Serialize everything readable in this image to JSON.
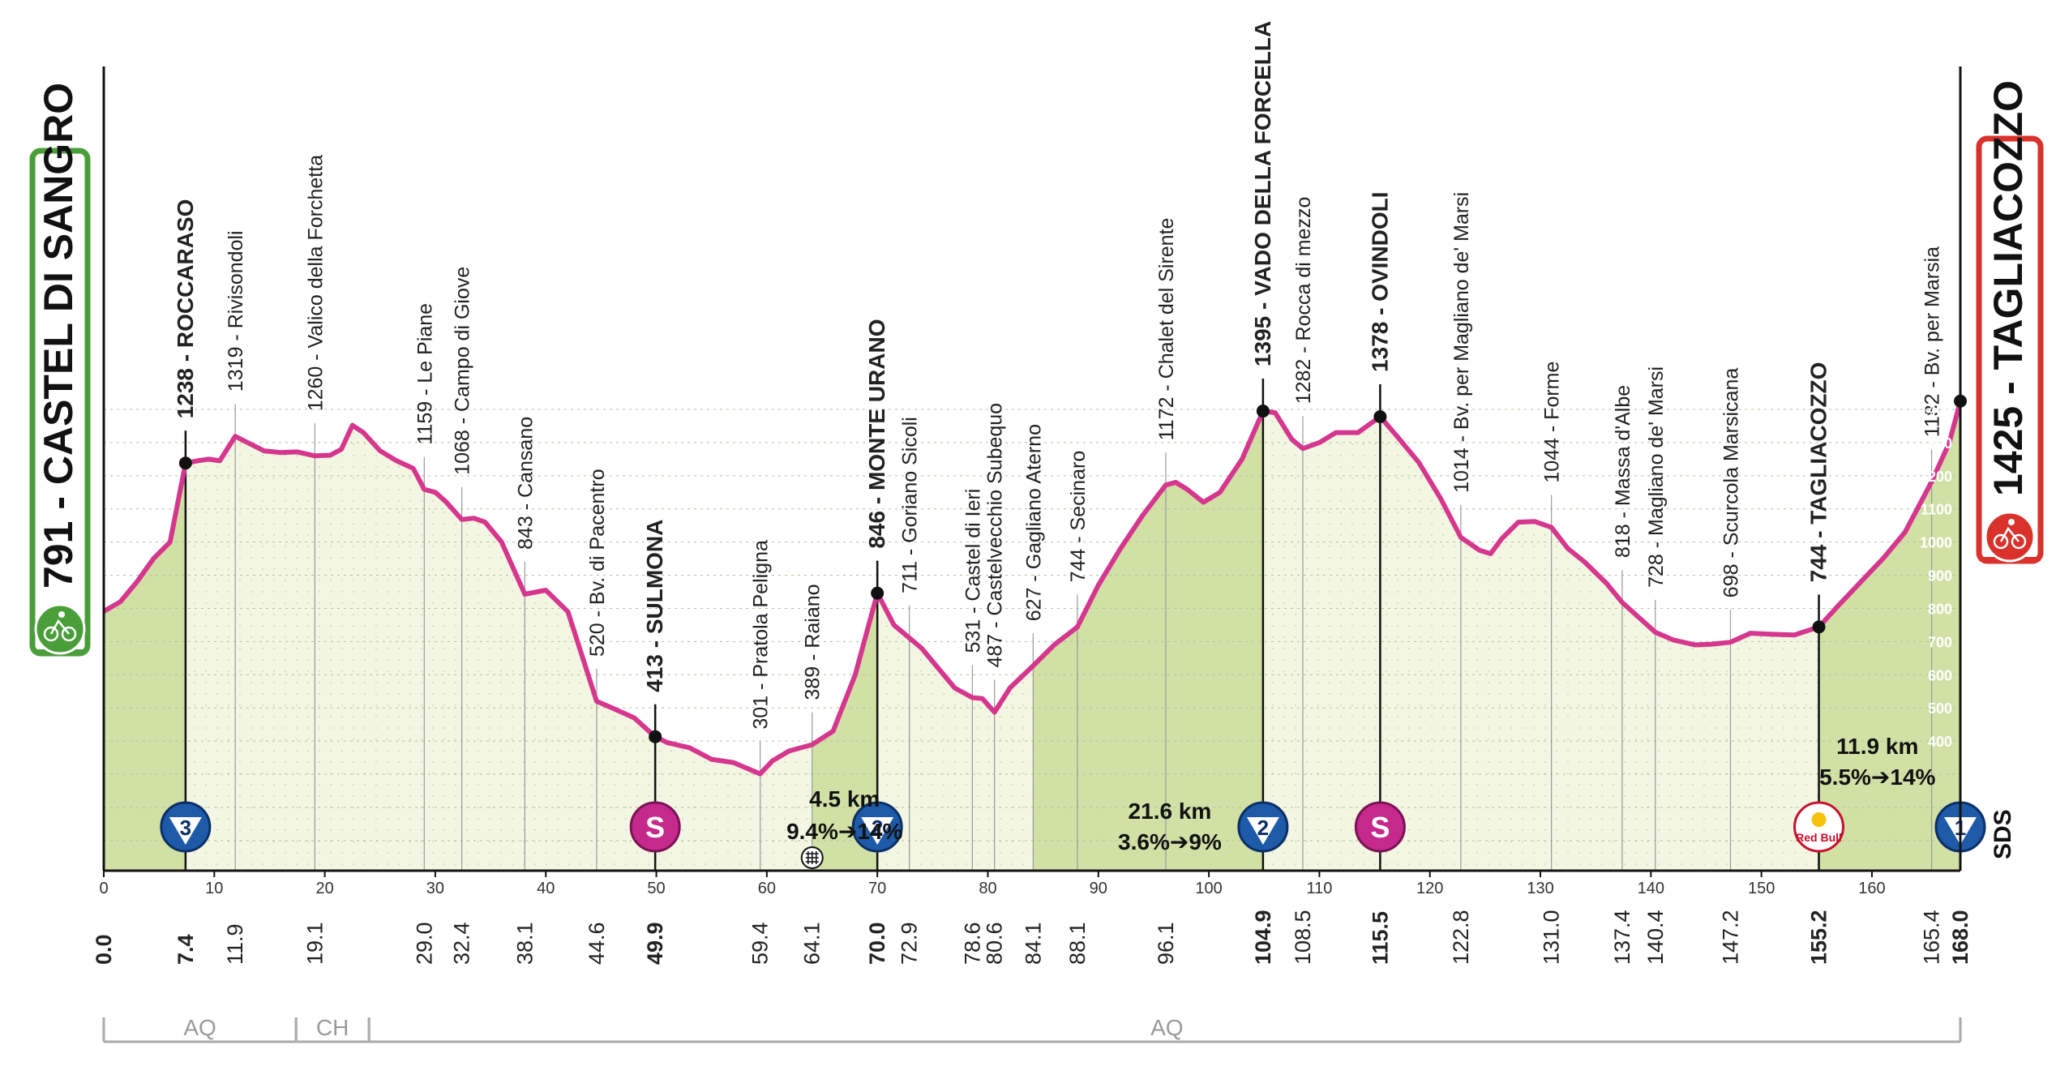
{
  "chart_data": {
    "type": "area",
    "title": "",
    "xlabel": "",
    "ylabel": "",
    "xlim": [
      0,
      168
    ],
    "ylim": [
      0,
      1500
    ],
    "profile": [
      [
        0,
        791
      ],
      [
        1.5,
        820
      ],
      [
        3,
        880
      ],
      [
        4.5,
        950
      ],
      [
        6,
        1000
      ],
      [
        7.4,
        1238
      ],
      [
        8.5,
        1245
      ],
      [
        9.5,
        1250
      ],
      [
        10.5,
        1245
      ],
      [
        11.9,
        1319
      ],
      [
        13,
        1300
      ],
      [
        14.5,
        1275
      ],
      [
        16,
        1270
      ],
      [
        17.5,
        1272
      ],
      [
        19.1,
        1260
      ],
      [
        20.5,
        1262
      ],
      [
        21.5,
        1280
      ],
      [
        22.5,
        1352
      ],
      [
        23.5,
        1330
      ],
      [
        25,
        1275
      ],
      [
        26.5,
        1245
      ],
      [
        28,
        1222
      ],
      [
        29,
        1159
      ],
      [
        30,
        1150
      ],
      [
        31,
        1120
      ],
      [
        32.4,
        1068
      ],
      [
        33.5,
        1072
      ],
      [
        34.5,
        1060
      ],
      [
        36,
        1000
      ],
      [
        38.1,
        843
      ],
      [
        40,
        855
      ],
      [
        42,
        790
      ],
      [
        44.6,
        520
      ],
      [
        46,
        500
      ],
      [
        48,
        470
      ],
      [
        49.9,
        413
      ],
      [
        51,
        395
      ],
      [
        53,
        380
      ],
      [
        55,
        345
      ],
      [
        57,
        335
      ],
      [
        59.4,
        301
      ],
      [
        60.5,
        340
      ],
      [
        62,
        370
      ],
      [
        64.1,
        389
      ],
      [
        66,
        430
      ],
      [
        68,
        600
      ],
      [
        70,
        846
      ],
      [
        71.5,
        750
      ],
      [
        72.9,
        711
      ],
      [
        74,
        680
      ],
      [
        75.5,
        620
      ],
      [
        77,
        560
      ],
      [
        78.6,
        531
      ],
      [
        79.5,
        528
      ],
      [
        80.6,
        487
      ],
      [
        82,
        560
      ],
      [
        84.1,
        627
      ],
      [
        86,
        690
      ],
      [
        88.1,
        744
      ],
      [
        90,
        870
      ],
      [
        92,
        980
      ],
      [
        94,
        1080
      ],
      [
        96.1,
        1172
      ],
      [
        97,
        1180
      ],
      [
        98,
        1160
      ],
      [
        99.5,
        1120
      ],
      [
        101,
        1150
      ],
      [
        103,
        1250
      ],
      [
        104.9,
        1395
      ],
      [
        106,
        1390
      ],
      [
        107.5,
        1310
      ],
      [
        108.5,
        1282
      ],
      [
        110,
        1300
      ],
      [
        111.5,
        1330
      ],
      [
        113.5,
        1330
      ],
      [
        115.5,
        1378
      ],
      [
        117,
        1320
      ],
      [
        119,
        1240
      ],
      [
        121,
        1130
      ],
      [
        122.8,
        1014
      ],
      [
        124.5,
        975
      ],
      [
        125.5,
        965
      ],
      [
        126.5,
        1010
      ],
      [
        128,
        1060
      ],
      [
        129.5,
        1062
      ],
      [
        131,
        1044
      ],
      [
        132.5,
        980
      ],
      [
        134,
        940
      ],
      [
        136,
        875
      ],
      [
        137.4,
        818
      ],
      [
        139,
        770
      ],
      [
        140.4,
        728
      ],
      [
        142,
        705
      ],
      [
        144,
        690
      ],
      [
        145.5,
        692
      ],
      [
        147.2,
        698
      ],
      [
        149,
        725
      ],
      [
        151,
        722
      ],
      [
        153,
        720
      ],
      [
        155.2,
        744
      ],
      [
        157,
        810
      ],
      [
        159,
        880
      ],
      [
        161,
        950
      ],
      [
        163,
        1030
      ],
      [
        165.4,
        1182
      ],
      [
        167,
        1300
      ],
      [
        168,
        1425
      ]
    ],
    "x_ticks": [
      0,
      10,
      20,
      30,
      40,
      50,
      60,
      70,
      80,
      90,
      100,
      110,
      120,
      130,
      140,
      150,
      160
    ],
    "y_ticks": [
      "400",
      "500",
      "600",
      "700",
      "800",
      "900",
      "1000",
      "1100",
      "1200",
      "1300",
      "1400"
    ],
    "start": {
      "label": "791 - CASTEL DI SANGRO",
      "km": 0,
      "alt": 791,
      "km_label": "0.0"
    },
    "finish": {
      "label": "1425 - TAGLIACOZZO",
      "km": 168,
      "alt": 1425,
      "km_label": "168.0"
    },
    "waypoints": [
      {
        "km": 7.4,
        "alt": 1238,
        "km_label": "7.4",
        "label": "1238 - ROCCARASO",
        "bold": true,
        "kind": "kom",
        "badge": "3"
      },
      {
        "km": 11.9,
        "alt": 1319,
        "km_label": "11.9",
        "label": "1319 - Rivisondoli",
        "bold": false
      },
      {
        "km": 19.1,
        "alt": 1260,
        "km_label": "19.1",
        "label": "1260 - Valico della Forchetta",
        "bold": false
      },
      {
        "km": 29.0,
        "alt": 1159,
        "km_label": "29.0",
        "label": "1159 - Le Piane",
        "bold": false
      },
      {
        "km": 32.4,
        "alt": 1068,
        "km_label": "32.4",
        "label": "1068 - Campo di Giove",
        "bold": false
      },
      {
        "km": 38.1,
        "alt": 843,
        "km_label": "38.1",
        "label": "843 - Cansano",
        "bold": false
      },
      {
        "km": 44.6,
        "alt": 520,
        "km_label": "44.6",
        "label": "520 - Bv. di Pacentro",
        "bold": false
      },
      {
        "km": 49.9,
        "alt": 413,
        "km_label": "49.9",
        "label": "413 - SULMONA",
        "bold": true,
        "kind": "sprint",
        "badge": "S"
      },
      {
        "km": 59.4,
        "alt": 301,
        "km_label": "59.4",
        "label": "301 - Pratola Peligna",
        "bold": false
      },
      {
        "km": 64.1,
        "alt": 389,
        "km_label": "64.1",
        "label": "389 - Raiano",
        "bold": false,
        "kind": "feed"
      },
      {
        "km": 70.0,
        "alt": 846,
        "km_label": "70.0",
        "label": "846 - MONTE URANO",
        "bold": true,
        "kind": "kom",
        "badge": "2"
      },
      {
        "km": 72.9,
        "alt": 711,
        "km_label": "72.9",
        "label": "711 - Goriano Sicoli",
        "bold": false
      },
      {
        "km": 78.6,
        "alt": 531,
        "km_label": "78.6",
        "label": "531 - Castel di Ieri",
        "bold": false
      },
      {
        "km": 80.6,
        "alt": 487,
        "km_label": "80.6",
        "label": "487 - Castelvecchio Subequo",
        "bold": false
      },
      {
        "km": 84.1,
        "alt": 627,
        "km_label": "84.1",
        "label": "627 - Gagliano Aterno",
        "bold": false
      },
      {
        "km": 88.1,
        "alt": 744,
        "km_label": "88.1",
        "label": "744 - Secinaro",
        "bold": false
      },
      {
        "km": 96.1,
        "alt": 1172,
        "km_label": "96.1",
        "label": "1172 - Chalet del Sirente",
        "bold": false
      },
      {
        "km": 104.9,
        "alt": 1395,
        "km_label": "104.9",
        "label": "1395 - VADO DELLA FORCELLA",
        "bold": true,
        "kind": "kom",
        "badge": "2"
      },
      {
        "km": 108.5,
        "alt": 1282,
        "km_label": "108.5",
        "label": "1282 - Rocca di mezzo",
        "bold": false
      },
      {
        "km": 115.5,
        "alt": 1378,
        "km_label": "115.5",
        "label": "1378 - OVINDOLI",
        "bold": true,
        "kind": "sprint",
        "badge": "S"
      },
      {
        "km": 122.8,
        "alt": 1014,
        "km_label": "122.8",
        "label": "1014 - Bv. per Magliano de' Marsi",
        "bold": false
      },
      {
        "km": 131.0,
        "alt": 1044,
        "km_label": "131.0",
        "label": "1044 - Forme",
        "bold": false
      },
      {
        "km": 137.4,
        "alt": 818,
        "km_label": "137.4",
        "label": "818 - Massa d'Albe",
        "bold": false
      },
      {
        "km": 140.4,
        "alt": 728,
        "km_label": "140.4",
        "label": "728 - Magliano de' Marsi",
        "bold": false
      },
      {
        "km": 147.2,
        "alt": 698,
        "km_label": "147.2",
        "label": "698 - Scurcola Marsicana",
        "bold": false
      },
      {
        "km": 155.2,
        "alt": 744,
        "km_label": "155.2",
        "label": "744 - TAGLIACOZZO",
        "bold": true,
        "kind": "redbull",
        "badge": "Red Bull"
      },
      {
        "km": 165.4,
        "alt": 1182,
        "km_label": "165.4",
        "label": "1182 - Bv. per Marsia",
        "bold": false
      }
    ],
    "finish_badge": "1",
    "climbs": [
      {
        "from_km": 64.1,
        "to_km": 70.0,
        "length": "4.5 km",
        "gradient": "9.4%➔14%"
      },
      {
        "from_km": 84.1,
        "to_km": 104.9,
        "length": "21.6 km",
        "gradient": "3.6%➔9%"
      },
      {
        "from_km": 155.2,
        "to_km": 168.0,
        "length": "11.9 km",
        "gradient": "5.5%➔14%"
      }
    ],
    "regions": [
      {
        "label": "AQ",
        "from_km": 0,
        "to_km": 17.4
      },
      {
        "label": "CH",
        "from_km": 17.4,
        "to_km": 24
      },
      {
        "label": "AQ",
        "from_km": 24,
        "to_km": 168
      }
    ],
    "sponsor": "SDS",
    "colors": {
      "profile_line": "#d6378e",
      "fill_flat": "#f3f6e2",
      "fill_climb": "#cfdea1",
      "start_box": "#4a9e3a",
      "finish_box": "#d9322c",
      "kom_badge": "#1e5aa8",
      "sprint_badge": "#c4298b"
    }
  }
}
